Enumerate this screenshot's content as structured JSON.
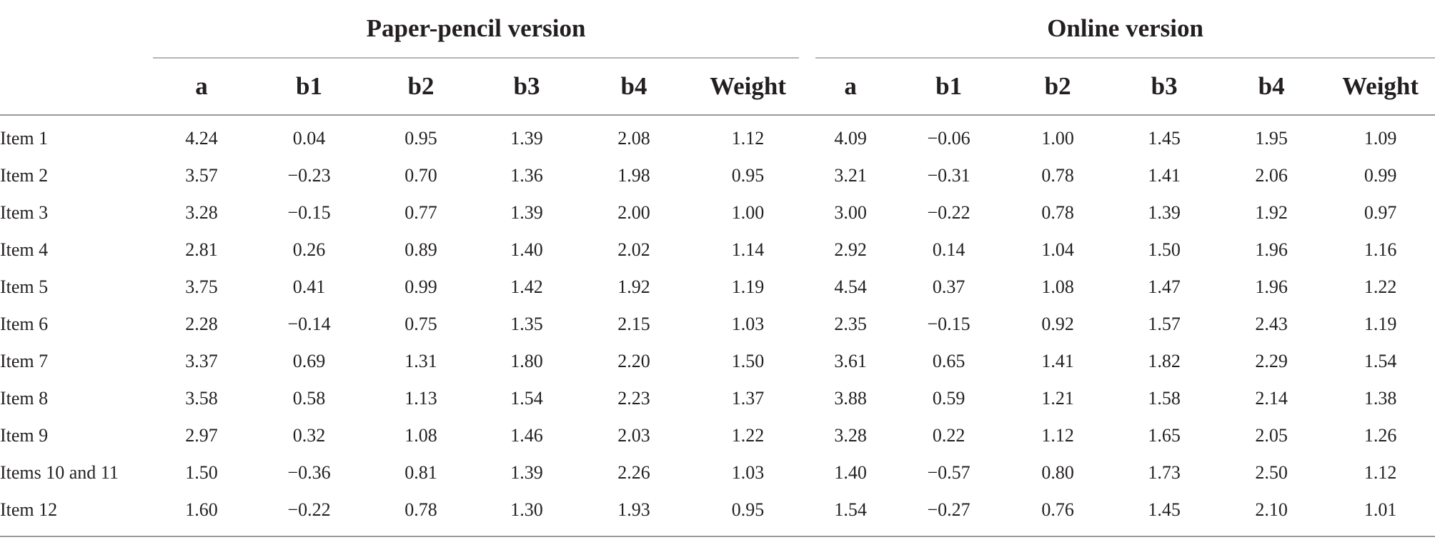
{
  "table": {
    "groups": [
      "Paper-pencil version",
      "Online version"
    ],
    "columns": [
      "a",
      "b1",
      "b2",
      "b3",
      "b4",
      "Weight",
      "a",
      "b1",
      "b2",
      "b3",
      "b4",
      "Weight"
    ],
    "rows": [
      {
        "label": "Item 1",
        "values": [
          "4.24",
          "0.04",
          "0.95",
          "1.39",
          "2.08",
          "1.12",
          "4.09",
          "−0.06",
          "1.00",
          "1.45",
          "1.95",
          "1.09"
        ]
      },
      {
        "label": "Item 2",
        "values": [
          "3.57",
          "−0.23",
          "0.70",
          "1.36",
          "1.98",
          "0.95",
          "3.21",
          "−0.31",
          "0.78",
          "1.41",
          "2.06",
          "0.99"
        ]
      },
      {
        "label": "Item 3",
        "values": [
          "3.28",
          "−0.15",
          "0.77",
          "1.39",
          "2.00",
          "1.00",
          "3.00",
          "−0.22",
          "0.78",
          "1.39",
          "1.92",
          "0.97"
        ]
      },
      {
        "label": "Item 4",
        "values": [
          "2.81",
          "0.26",
          "0.89",
          "1.40",
          "2.02",
          "1.14",
          "2.92",
          "0.14",
          "1.04",
          "1.50",
          "1.96",
          "1.16"
        ]
      },
      {
        "label": "Item 5",
        "values": [
          "3.75",
          "0.41",
          "0.99",
          "1.42",
          "1.92",
          "1.19",
          "4.54",
          "0.37",
          "1.08",
          "1.47",
          "1.96",
          "1.22"
        ]
      },
      {
        "label": "Item 6",
        "values": [
          "2.28",
          "−0.14",
          "0.75",
          "1.35",
          "2.15",
          "1.03",
          "2.35",
          "−0.15",
          "0.92",
          "1.57",
          "2.43",
          "1.19"
        ]
      },
      {
        "label": "Item 7",
        "values": [
          "3.37",
          "0.69",
          "1.31",
          "1.80",
          "2.20",
          "1.50",
          "3.61",
          "0.65",
          "1.41",
          "1.82",
          "2.29",
          "1.54"
        ]
      },
      {
        "label": "Item 8",
        "values": [
          "3.58",
          "0.58",
          "1.13",
          "1.54",
          "2.23",
          "1.37",
          "3.88",
          "0.59",
          "1.21",
          "1.58",
          "2.14",
          "1.38"
        ]
      },
      {
        "label": "Item 9",
        "values": [
          "2.97",
          "0.32",
          "1.08",
          "1.46",
          "2.03",
          "1.22",
          "3.28",
          "0.22",
          "1.12",
          "1.65",
          "2.05",
          "1.26"
        ]
      },
      {
        "label": "Items 10 and 11",
        "values": [
          "1.50",
          "−0.36",
          "0.81",
          "1.39",
          "2.26",
          "1.03",
          "1.40",
          "−0.57",
          "0.80",
          "1.73",
          "2.50",
          "1.12"
        ]
      },
      {
        "label": "Item 12",
        "values": [
          "1.60",
          "−0.22",
          "0.78",
          "1.30",
          "1.93",
          "0.95",
          "1.54",
          "−0.27",
          "0.76",
          "1.45",
          "2.10",
          "1.01"
        ]
      }
    ]
  }
}
